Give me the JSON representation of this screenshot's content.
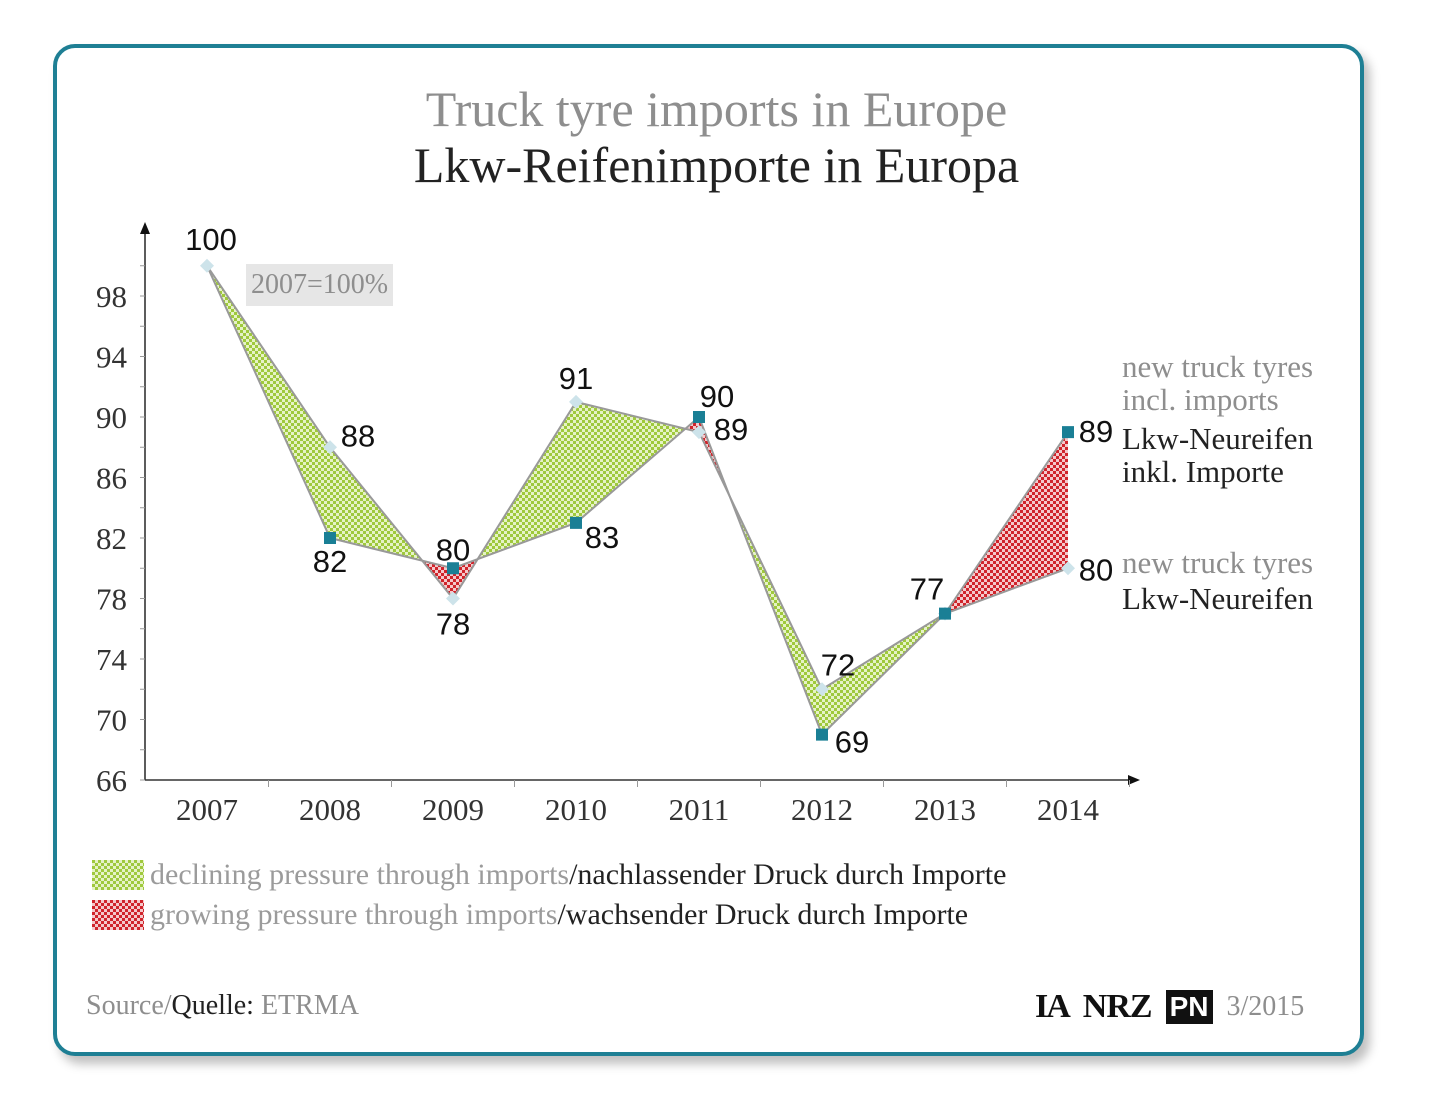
{
  "chart_data": {
    "type": "line",
    "title": "Truck tyre imports in Europe",
    "subtitle": "Lkw-Reifenimporte in Europa",
    "note": "2007=100%",
    "categories": [
      "2007",
      "2008",
      "2009",
      "2010",
      "2011",
      "2012",
      "2013",
      "2014"
    ],
    "ylim": [
      66,
      102
    ],
    "yticks": [
      66,
      70,
      74,
      78,
      82,
      86,
      90,
      94,
      98
    ],
    "series": [
      {
        "name_en": "new truck tyres incl. imports",
        "name_de": "Lkw-Neureifen inkl. Importe",
        "values": [
          100,
          82,
          80,
          83,
          90,
          69,
          77,
          89
        ],
        "labels": [
          "",
          "82",
          "80",
          "83",
          "90",
          "69",
          "",
          "89"
        ],
        "marker": "square",
        "color": "#1a7f95"
      },
      {
        "name_en": "new truck tyres",
        "name_de": "Lkw-Neureifen",
        "values": [
          100,
          88,
          78,
          91,
          89,
          72,
          77,
          80
        ],
        "labels": [
          "100",
          "88",
          "78",
          "91",
          "89",
          "72",
          "77",
          "80"
        ],
        "marker": "diamond",
        "color": "#cde3ea"
      }
    ],
    "fill_colors": {
      "declining": "#9fc93c",
      "growing": "#d0242b"
    },
    "grid": false
  },
  "legend": {
    "declining_en": "declining pressure through imports",
    "declining_de": "/nachlassender Druck durch Importe",
    "growing_en": "growing pressure through imports",
    "growing_de": "/wachsender Druck durch Importe"
  },
  "footer": {
    "source_prefix": "Source/",
    "source_label": "Quelle:",
    "source_value": "ETRMA",
    "logo_ia": "IA",
    "logo_nrz": "NRZ",
    "logo_pn": "PN",
    "issue": "3/2015"
  },
  "colors": {
    "border": "#1e7f94",
    "axis": "#333333"
  }
}
